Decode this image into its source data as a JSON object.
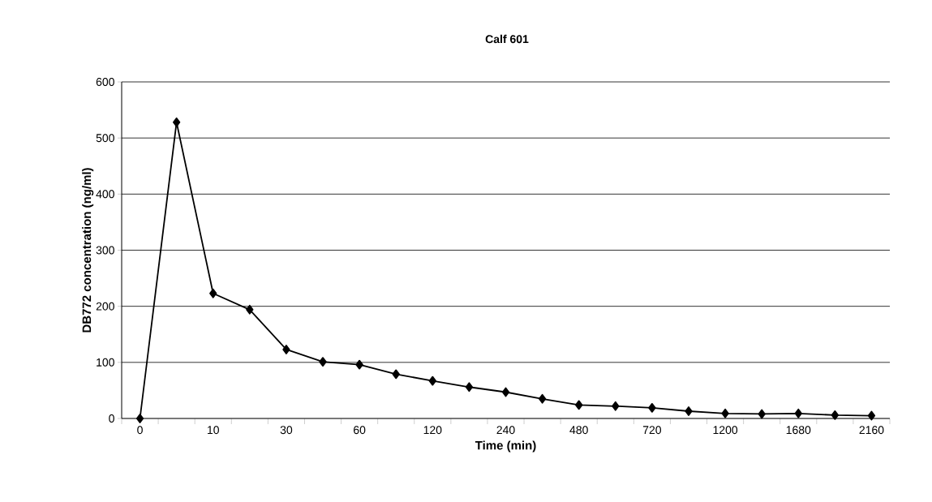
{
  "chart_data": {
    "type": "line",
    "title": "Calf 601",
    "xlabel": "Time (min)",
    "ylabel": "DB772 concentration (ng/ml)",
    "categories": [
      "0",
      null,
      "10",
      null,
      "30",
      null,
      "60",
      null,
      "120",
      null,
      "240",
      null,
      "480",
      null,
      "720",
      null,
      "1200",
      null,
      "1680",
      null,
      "2160"
    ],
    "values": [
      0,
      528,
      223,
      194,
      123,
      101,
      96,
      79,
      67,
      56,
      47,
      35,
      24,
      22,
      19,
      13,
      9,
      8,
      9,
      6,
      5
    ],
    "color": "#000000",
    "marker": "diamond",
    "line_style": "solid",
    "ylim": [
      0,
      600
    ],
    "yticks": [
      0,
      100,
      200,
      300,
      400,
      500,
      600
    ],
    "grid": "y"
  }
}
